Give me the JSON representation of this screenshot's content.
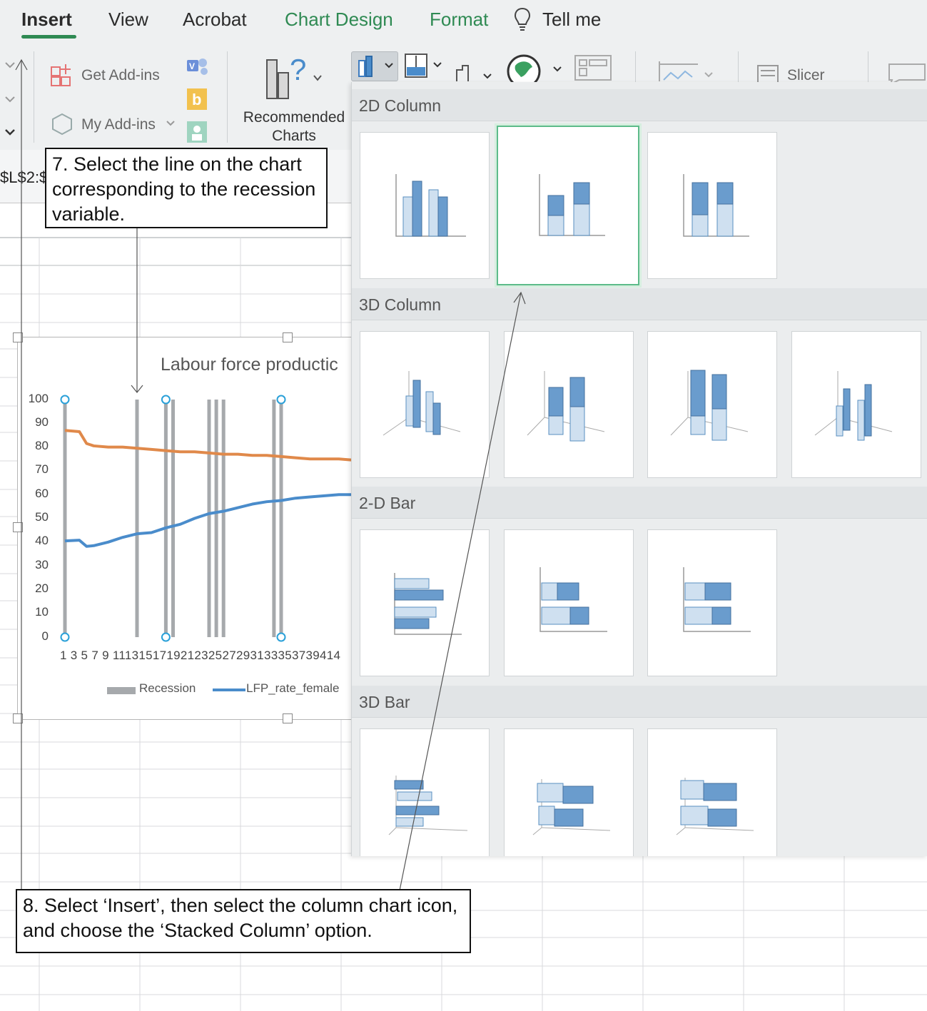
{
  "ribbon": {
    "tabs": [
      {
        "label": "Insert"
      },
      {
        "label": "View"
      },
      {
        "label": "Acrobat"
      },
      {
        "label": "Chart Design"
      },
      {
        "label": "Format"
      },
      {
        "label": "Tell me"
      }
    ],
    "active_tab": "Insert",
    "accent_color": "#2f8a53"
  },
  "toolbar": {
    "get_addins": "Get Add-ins",
    "my_addins": "My Add-ins",
    "recommended_line1": "Recommended",
    "recommended_line2": "Charts",
    "slicer": "Slicer"
  },
  "formula": {
    "cell_ref": "$L$2:$"
  },
  "chart": {
    "title": "Labour force productic",
    "legend": [
      {
        "name": "Recession",
        "color": "#a6a9ac"
      },
      {
        "name": "LFP_rate_female",
        "color": "#4a8ccb"
      }
    ],
    "x_tick_labels": "1 3 5 7 9 111315171921232527293133353739414",
    "chart_data": {
      "type": "line",
      "title": "Labour force productic",
      "ylim": [
        0,
        100
      ],
      "y_ticks": [
        0,
        10,
        20,
        30,
        40,
        50,
        60,
        70,
        80,
        90,
        100
      ],
      "x_ticks": [
        1,
        3,
        5,
        7,
        9,
        11,
        13,
        15,
        17,
        19,
        21,
        23,
        25,
        27,
        29,
        31,
        33,
        35,
        37,
        39,
        41
      ],
      "series": [
        {
          "name": "Recession",
          "type": "column",
          "color": "#a6a9ac",
          "x": [
            1,
            11,
            15,
            16,
            21,
            22,
            23,
            30,
            31
          ],
          "values": [
            100,
            100,
            100,
            100,
            100,
            100,
            100,
            100,
            100
          ]
        },
        {
          "name": "LFP_rate_female",
          "color": "#4a8ccb",
          "x": [
            1,
            3,
            4,
            5,
            7,
            9,
            11,
            13,
            15,
            17,
            19,
            21,
            23,
            25,
            27,
            29,
            31,
            33,
            35,
            37,
            39,
            41
          ],
          "values": [
            40.5,
            40.8,
            38.2,
            38.5,
            40,
            42,
            43.5,
            44,
            46,
            47.5,
            50,
            52,
            53,
            54.5,
            56,
            57,
            57.5,
            58.5,
            59,
            59.5,
            60,
            60
          ]
        },
        {
          "name": "",
          "color": "#e0894a",
          "x": [
            1,
            3,
            4,
            5,
            7,
            9,
            11,
            13,
            15,
            17,
            19,
            21,
            23,
            25,
            27,
            29,
            31,
            33,
            35,
            37,
            39,
            41
          ],
          "values": [
            87,
            86.5,
            81.5,
            80.5,
            80,
            80,
            79.5,
            79,
            78.5,
            78,
            78,
            77.5,
            77,
            77,
            76.5,
            76.5,
            76,
            75.5,
            75,
            75,
            75,
            74.5
          ]
        }
      ]
    }
  },
  "gallery": {
    "sections": [
      {
        "label": "2D Column"
      },
      {
        "label": "3D Column"
      },
      {
        "label": "2-D Bar"
      },
      {
        "label": "3D Bar"
      }
    ],
    "selected": "Stacked Column"
  },
  "callouts": {
    "step7": "7.  Select the line on the chart corresponding to the recession variable.",
    "step8": "8.  Select ‘Insert’, then select the column chart icon, and choose the ‘Stacked Column’ option."
  }
}
